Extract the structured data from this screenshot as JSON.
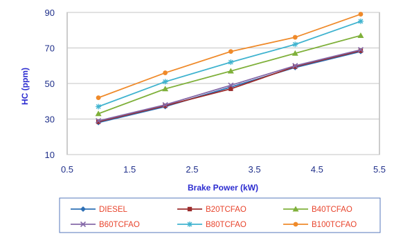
{
  "chart_data": {
    "type": "line",
    "title": "",
    "xlabel": "Brake Power (kW)",
    "ylabel": "HC (ppm)",
    "xlim": [
      0.5,
      5.5
    ],
    "ylim": [
      10,
      90
    ],
    "xticks": [
      "0.5",
      "1.5",
      "2.5",
      "3.5",
      "4.5",
      "5.5"
    ],
    "yticks": [
      "10",
      "30",
      "50",
      "70",
      "90"
    ],
    "grid": "horizontal",
    "legend_position": "bottom",
    "x": [
      1.0,
      2.07,
      3.12,
      4.15,
      5.2
    ],
    "series": [
      {
        "name": "DIESEL",
        "color": "#2c6fb5",
        "marker": "diamond",
        "values": [
          28,
          37,
          48,
          59,
          68
        ]
      },
      {
        "name": "B20TCFAO",
        "color": "#9b2c2c",
        "marker": "square",
        "values": [
          28.5,
          37.5,
          47,
          59.5,
          68.5
        ]
      },
      {
        "name": "B40TCFAO",
        "color": "#7fb03a",
        "marker": "triangle",
        "values": [
          33,
          47,
          57,
          67,
          77
        ]
      },
      {
        "name": "B60TCFAO",
        "color": "#8468a8",
        "marker": "cross",
        "values": [
          29,
          38,
          49,
          60,
          69
        ]
      },
      {
        "name": "B80TCFAO",
        "color": "#3fb3cf",
        "marker": "star",
        "values": [
          37,
          51,
          62,
          72,
          85
        ]
      },
      {
        "name": "B100TCFAO",
        "color": "#ef8a2a",
        "marker": "circle",
        "values": [
          42,
          56,
          68,
          76,
          89
        ]
      }
    ]
  }
}
